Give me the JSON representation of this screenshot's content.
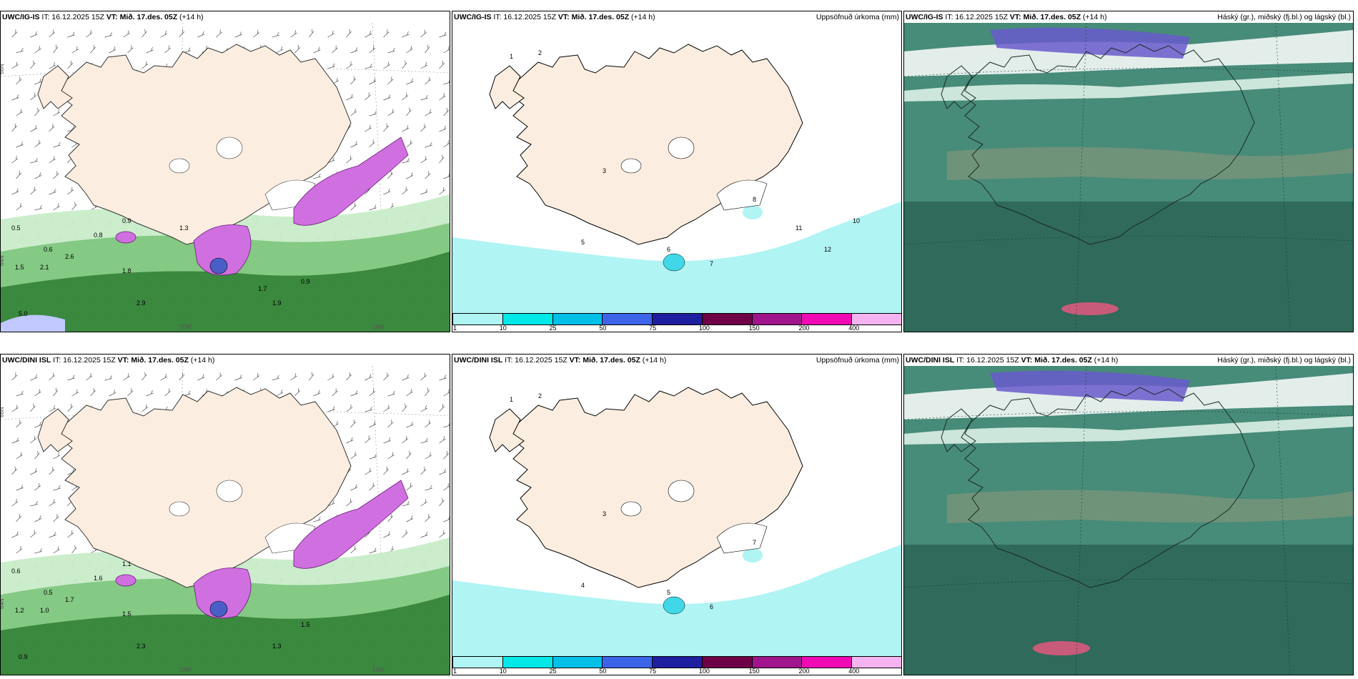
{
  "panels": [
    {
      "model": "UWC/IG-IS",
      "it": "IT: 16.12.2025 15Z",
      "vt_label": "VT:",
      "vt_value": "Mið. 17.des. 05Z",
      "lead": "(+14 h)",
      "right": ""
    },
    {
      "model": "UWC/IG-IS",
      "it": "IT: 16.12.2025 15Z",
      "vt_label": "VT:",
      "vt_value": "Mið. 17.des. 05Z",
      "lead": "(+14 h)",
      "right": "Uppsöfnuð úrkoma (mm)"
    },
    {
      "model": "UWC/IG-IS",
      "it": "IT: 16.12.2025 15Z",
      "vt_label": "VT:",
      "vt_value": "Mið. 17.des. 05Z",
      "lead": "(+14 h)",
      "right": "Háský (gr.), miðský (fj.bl.) og lágský (bl.)"
    },
    {
      "model": "UWC/DINI ISL",
      "it": "IT: 16.12.2025 15Z",
      "vt_label": "VT:",
      "vt_value": "Mið. 17.des. 05Z",
      "lead": "(+14 h)",
      "right": ""
    },
    {
      "model": "UWC/DINI ISL",
      "it": "IT: 16.12.2025 15Z",
      "vt_label": "VT:",
      "vt_value": "Mið. 17.des. 05Z",
      "lead": "(+14 h)",
      "right": "Uppsöfnuð úrkoma (mm)"
    },
    {
      "model": "UWC/DINI ISL",
      "it": "IT: 16.12.2025 15Z",
      "vt_label": "VT:",
      "vt_value": "Mið. 17.des. 05Z",
      "lead": "(+14 h)",
      "right": "Háský (gr.), miðský (fj.bl.) og lágský (bl.)"
    }
  ],
  "axis_labels": {
    "lat_66": "66N",
    "lat_64": "64N",
    "lon_20": "20W",
    "lon_15": "15W"
  },
  "colorbar": {
    "ticks": [
      "1",
      "10",
      "25",
      "50",
      "75",
      "100",
      "150",
      "200",
      "400"
    ],
    "colors": [
      "#b0f4f4",
      "#00e8e8",
      "#00c0e8",
      "#3c64e8",
      "#1e1ea0",
      "#6e0046",
      "#a0148c",
      "#f00ab4",
      "#f5b4f0"
    ]
  },
  "precip_labels_top": [
    "0.5",
    "0.6",
    "0.8",
    "0.9",
    "1.5",
    "2.1",
    "2.6",
    "1.8",
    "2.9",
    "5.0",
    "1.9",
    "0.9",
    "1.3",
    "1.7"
  ],
  "accum_labels_top": [
    "1",
    "2",
    "3",
    "5",
    "6",
    "7",
    "8",
    "11",
    "12",
    "10"
  ],
  "precip_labels_bottom": [
    "0.6",
    "0.5",
    "1.6",
    "1.1",
    "1.2",
    "1.0",
    "1.7",
    "1.5",
    "2.3",
    "0.9",
    "1.3",
    "1.5"
  ],
  "accum_labels_bottom": [
    "1",
    "2",
    "3",
    "4",
    "5",
    "6",
    "7"
  ],
  "colors": {
    "land": "#fbeee0",
    "green_light": "#c8ecc8",
    "green_mid": "#7cc47c",
    "green_dark": "#2e7d32",
    "magenta": "#d070e0",
    "cyan": "#b0f4f4",
    "cloud_base": "#2f6a5a",
    "cloud_mid": "#4a8f7c"
  }
}
